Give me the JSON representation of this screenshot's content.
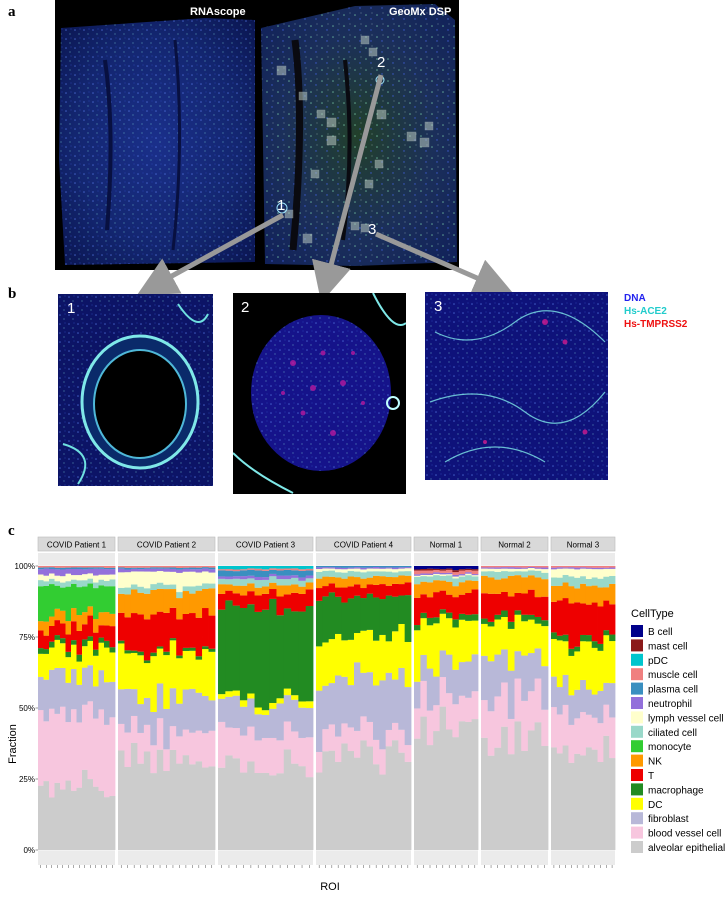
{
  "panel_a": {
    "letter": "a",
    "left_label": "RNAscope",
    "right_label": "GeoMx DSP",
    "roi_numbers": [
      "1",
      "2",
      "3"
    ]
  },
  "panel_b": {
    "letter": "b",
    "inset_numbers": [
      "1",
      "2",
      "3"
    ],
    "legend": [
      {
        "label": "DNA",
        "color": "#2222ee"
      },
      {
        "label": "Hs-ACE2",
        "color": "#22cccc"
      },
      {
        "label": "Hs-TMPRSS2",
        "color": "#ee1111"
      }
    ]
  },
  "panel_c": {
    "letter": "c"
  },
  "chart_data": {
    "type": "area",
    "stacked": true,
    "facets": [
      "COVID Patient 1",
      "COVID Patient 2",
      "COVID Patient 3",
      "COVID Patient 4",
      "Normal 1",
      "Normal 2",
      "Normal 3"
    ],
    "ylabel": "Fraction",
    "xlabel": "ROI",
    "yticks": [
      "0%",
      "25%",
      "50%",
      "75%",
      "100%"
    ],
    "ylim": [
      0,
      1
    ],
    "legend_title": "CellType",
    "legend_position": "right",
    "celltypes": [
      {
        "name": "B cell",
        "color": "#00008b"
      },
      {
        "name": "mast cell",
        "color": "#8b1a1a"
      },
      {
        "name": "pDC",
        "color": "#00c5cd"
      },
      {
        "name": "muscle cell",
        "color": "#f08080"
      },
      {
        "name": "plasma cell",
        "color": "#3a8fc0"
      },
      {
        "name": "neutrophil",
        "color": "#9370db"
      },
      {
        "name": "lymph vessel cell",
        "color": "#ffffcc"
      },
      {
        "name": "ciliated cell",
        "color": "#99d8c9"
      },
      {
        "name": "monocyte",
        "color": "#32cd32"
      },
      {
        "name": "NK",
        "color": "#ff9900"
      },
      {
        "name": "T",
        "color": "#ee0000"
      },
      {
        "name": "macrophage",
        "color": "#228b22"
      },
      {
        "name": "DC",
        "color": "#ffff00"
      },
      {
        "name": "fibroblast",
        "color": "#b8b8d8"
      },
      {
        "name": "blood vessel cell",
        "color": "#f7c6de"
      },
      {
        "name": "alveolar epithelial",
        "color": "#cccccc"
      }
    ],
    "representative_composition": [
      {
        "facet": "COVID Patient 1",
        "rois": 14,
        "alveolar epithelial": 0.22,
        "blood vessel cell": 0.25,
        "fibroblast": 0.14,
        "DC": 0.09,
        "macrophage": 0.02,
        "T": 0.06,
        "NK": 0.04,
        "monocyte": 0.1,
        "ciliated cell": 0.02,
        "lymph vessel cell": 0.02,
        "neutrophil": 0.02,
        "plasma cell": 0.005,
        "muscle cell": 0.005,
        "pDC": 0.0,
        "mast cell": 0.0,
        "B cell": 0.0
      },
      {
        "facet": "COVID Patient 2",
        "rois": 15,
        "alveolar epithelial": 0.33,
        "blood vessel cell": 0.1,
        "fibroblast": 0.12,
        "DC": 0.15,
        "macrophage": 0.01,
        "T": 0.12,
        "NK": 0.08,
        "monocyte": 0.0,
        "ciliated cell": 0.02,
        "lymph vessel cell": 0.05,
        "neutrophil": 0.01,
        "plasma cell": 0.005,
        "muscle cell": 0.005,
        "pDC": 0.0,
        "mast cell": 0.0,
        "B cell": 0.0
      },
      {
        "facet": "COVID Patient 3",
        "rois": 13,
        "alveolar epithelial": 0.3,
        "blood vessel cell": 0.12,
        "fibroblast": 0.1,
        "DC": 0.02,
        "macrophage": 0.32,
        "T": 0.05,
        "NK": 0.03,
        "monocyte": 0.0,
        "ciliated cell": 0.02,
        "lymph vessel cell": 0.0,
        "neutrophil": 0.01,
        "plasma cell": 0.02,
        "muscle cell": 0.005,
        "pDC": 0.01,
        "mast cell": 0.0,
        "B cell": 0.0
      },
      {
        "facet": "COVID Patient 4",
        "rois": 15,
        "alveolar epithelial": 0.33,
        "blood vessel cell": 0.08,
        "fibroblast": 0.2,
        "DC": 0.14,
        "macrophage": 0.14,
        "T": 0.04,
        "NK": 0.03,
        "monocyte": 0.0,
        "ciliated cell": 0.02,
        "lymph vessel cell": 0.01,
        "neutrophil": 0.005,
        "plasma cell": 0.005,
        "muscle cell": 0.0,
        "pDC": 0.0,
        "mast cell": 0.0,
        "B cell": 0.0
      },
      {
        "facet": "Normal 1",
        "rois": 10,
        "alveolar epithelial": 0.42,
        "blood vessel cell": 0.12,
        "fibroblast": 0.12,
        "DC": 0.16,
        "macrophage": 0.02,
        "T": 0.08,
        "NK": 0.04,
        "monocyte": 0.0,
        "ciliated cell": 0.02,
        "lymph vessel cell": 0.005,
        "neutrophil": 0.005,
        "plasma cell": 0.0,
        "muscle cell": 0.01,
        "pDC": 0.0,
        "mast cell": 0.005,
        "B cell": 0.01
      },
      {
        "facet": "Normal 2",
        "rois": 10,
        "alveolar epithelial": 0.4,
        "blood vessel cell": 0.14,
        "fibroblast": 0.14,
        "DC": 0.12,
        "macrophage": 0.02,
        "T": 0.08,
        "NK": 0.06,
        "monocyte": 0.0,
        "ciliated cell": 0.02,
        "lymph vessel cell": 0.01,
        "neutrophil": 0.005,
        "plasma cell": 0.0,
        "muscle cell": 0.005,
        "pDC": 0.0,
        "mast cell": 0.0,
        "B cell": 0.0
      },
      {
        "facet": "Normal 3",
        "rois": 11,
        "alveolar epithelial": 0.33,
        "blood vessel cell": 0.14,
        "fibroblast": 0.1,
        "DC": 0.15,
        "macrophage": 0.02,
        "T": 0.13,
        "NK": 0.06,
        "monocyte": 0.0,
        "ciliated cell": 0.03,
        "lymph vessel cell": 0.03,
        "neutrophil": 0.005,
        "plasma cell": 0.0,
        "muscle cell": 0.005,
        "pDC": 0.0,
        "mast cell": 0.0,
        "B cell": 0.0
      }
    ]
  }
}
